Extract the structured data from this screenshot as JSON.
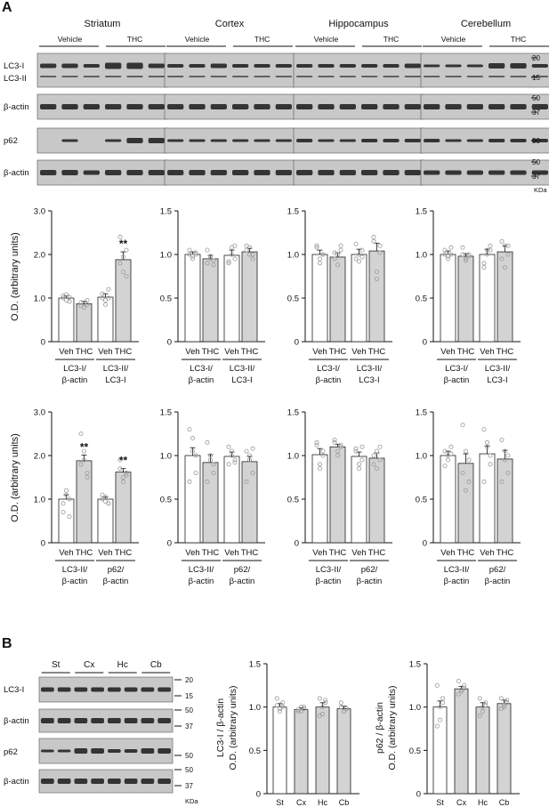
{
  "panel_a": {
    "label": "A",
    "regions": [
      "Striatum",
      "Cortex",
      "Hippocampus",
      "Cerebellum"
    ],
    "group_labels": [
      "Vehicle",
      "THC"
    ],
    "blot_row_labels": [
      "LC3-I",
      "LC3-II",
      "β-actin",
      "p62",
      "β-actin"
    ],
    "marker_sets": [
      [
        "20",
        "15"
      ],
      [
        "50",
        "37"
      ],
      [
        "50"
      ],
      [
        "50",
        "37"
      ]
    ],
    "kda": "KDa",
    "y_axis_label": "O.D. (arbitrary units)",
    "x_tick_labels": [
      "Veh",
      "THC"
    ],
    "significance": "**",
    "row1_groups": [
      [
        "LC3-I/",
        "β-actin"
      ],
      [
        "LC3-II/",
        "LC3-I"
      ]
    ],
    "row2_groups": [
      [
        "LC3-II/",
        "β-actin"
      ],
      [
        "p62/",
        "β-actin"
      ]
    ]
  },
  "panel_b": {
    "label": "B",
    "lane_groups": [
      "St",
      "Cx",
      "Hc",
      "Cb"
    ],
    "blot_row_labels": [
      "LC3-I",
      "β-actin",
      "p62",
      "β-actin"
    ],
    "marker_sets": [
      [
        "20",
        "15"
      ],
      [
        "50",
        "37"
      ],
      [
        "50"
      ],
      [
        "50",
        "37"
      ]
    ],
    "kda": "KDa",
    "x_tick_labels": [
      "St",
      "Cx",
      "Hc",
      "Cb"
    ],
    "y_label_top": [
      "LC3-I / β-actin",
      "p62 / β-actin"
    ],
    "y_label_bottom": "O.D. (arbitrary units)"
  },
  "colors": {
    "veh_bar": "#ffffff",
    "thc_bar": "#d3d3d3",
    "b_bar": "#d3d3d3",
    "dot": "#9a9a9a",
    "blot_bg": "#c8c8c8",
    "band": "#1a1a1a"
  },
  "chart_data": [
    {
      "type": "bar",
      "region": "Striatum",
      "categories": [
        "Veh",
        "THC",
        "Veh",
        "THC"
      ],
      "groups": [
        "LC3-I/β-actin",
        "LC3-II/LC3-I"
      ],
      "values": [
        1.0,
        0.87,
        1.02,
        1.88
      ],
      "errors": [
        0.05,
        0.06,
        0.08,
        0.18
      ],
      "significant": [
        false,
        false,
        false,
        true
      ],
      "ylim": [
        0,
        3.0
      ],
      "yticks": [
        "0",
        "1.0",
        "2.0",
        "3.0"
      ],
      "points": [
        [
          1.0,
          1.08,
          0.92,
          1.05,
          0.95,
          1.02
        ],
        [
          0.9,
          0.78,
          0.95,
          0.82,
          0.88,
          0.85
        ],
        [
          1.0,
          0.85,
          1.2,
          1.1,
          0.95,
          1.0
        ],
        [
          2.4,
          1.95,
          1.5,
          1.8,
          1.6,
          2.1
        ]
      ]
    },
    {
      "type": "bar",
      "region": "Cortex",
      "categories": [
        "Veh",
        "THC",
        "Veh",
        "THC"
      ],
      "groups": [
        "LC3-I/β-actin",
        "LC3-II/LC3-I"
      ],
      "values": [
        1.0,
        0.95,
        0.99,
        1.03
      ],
      "errors": [
        0.03,
        0.04,
        0.06,
        0.04
      ],
      "significant": [
        false,
        false,
        false,
        false
      ],
      "ylim": [
        0,
        1.5
      ],
      "yticks": [
        "0",
        "0.5",
        "1.0",
        "1.5"
      ],
      "points": [
        [
          1.0,
          0.98,
          1.02,
          1.05,
          0.95,
          1.0
        ],
        [
          0.9,
          0.98,
          0.88,
          1.05,
          0.95,
          0.93
        ],
        [
          0.92,
          1.08,
          1.1,
          0.9,
          1.0,
          0.95
        ],
        [
          1.1,
          1.0,
          0.95,
          1.05,
          1.08,
          1.0
        ]
      ]
    },
    {
      "type": "bar",
      "region": "Hippocampus",
      "categories": [
        "Veh",
        "THC",
        "Veh",
        "THC"
      ],
      "groups": [
        "LC3-I/β-actin",
        "LC3-II/LC3-I"
      ],
      "values": [
        1.0,
        0.97,
        1.0,
        1.04
      ],
      "errors": [
        0.05,
        0.05,
        0.06,
        0.09
      ],
      "significant": [
        false,
        false,
        false,
        false
      ],
      "ylim": [
        0,
        1.5
      ],
      "yticks": [
        "0",
        "0.5",
        "1.0",
        "1.5"
      ],
      "points": [
        [
          1.1,
          0.9,
          1.0,
          1.08,
          0.95,
          1.0
        ],
        [
          1.02,
          0.88,
          1.05,
          0.95,
          1.0,
          1.1
        ],
        [
          1.12,
          0.92,
          1.05,
          0.95,
          1.0,
          0.97
        ],
        [
          1.2,
          0.8,
          1.1,
          1.15,
          0.72,
          1.02
        ]
      ]
    },
    {
      "type": "bar",
      "region": "Cerebellum",
      "categories": [
        "Veh",
        "THC",
        "Veh",
        "THC"
      ],
      "groups": [
        "LC3-I/β-actin",
        "LC3-II/LC3-I"
      ],
      "values": [
        1.0,
        0.98,
        1.0,
        1.03
      ],
      "errors": [
        0.04,
        0.03,
        0.06,
        0.07
      ],
      "significant": [
        false,
        false,
        false,
        false
      ],
      "ylim": [
        0,
        1.5
      ],
      "yticks": [
        "0",
        "0.5",
        "1.0",
        "1.5"
      ],
      "points": [
        [
          1.05,
          0.95,
          1.08,
          1.0,
          0.98,
          1.0
        ],
        [
          1.08,
          0.95,
          0.98,
          1.0,
          0.93,
          1.0
        ],
        [
          0.9,
          1.05,
          1.1,
          0.85,
          1.0,
          1.05
        ],
        [
          1.15,
          0.85,
          1.1,
          0.95,
          1.1,
          1.0
        ]
      ]
    },
    {
      "type": "bar",
      "region": "Striatum",
      "categories": [
        "Veh",
        "THC",
        "Veh",
        "THC"
      ],
      "groups": [
        "LC3-II/β-actin",
        "p62/β-actin"
      ],
      "values": [
        1.0,
        1.88,
        1.0,
        1.62
      ],
      "errors": [
        0.1,
        0.13,
        0.05,
        0.08
      ],
      "significant": [
        false,
        true,
        false,
        true
      ],
      "ylim": [
        0,
        3.0
      ],
      "yticks": [
        "0",
        "1.0",
        "2.0",
        "3.0"
      ],
      "points": [
        [
          0.7,
          1.2,
          1.0,
          0.9,
          1.1,
          0.6
        ],
        [
          2.5,
          1.9,
          1.6,
          1.8,
          2.1,
          1.5
        ],
        [
          1.1,
          0.95,
          0.9,
          1.0,
          1.05,
          0.9
        ],
        [
          1.9,
          1.5,
          1.6,
          1.7,
          1.4,
          1.55
        ]
      ]
    },
    {
      "type": "bar",
      "region": "Cortex",
      "categories": [
        "Veh",
        "THC",
        "Veh",
        "THC"
      ],
      "groups": [
        "LC3-II/β-actin",
        "p62/β-actin"
      ],
      "values": [
        1.0,
        0.92,
        0.99,
        0.93
      ],
      "errors": [
        0.09,
        0.09,
        0.05,
        0.06
      ],
      "significant": [
        false,
        false,
        false,
        false
      ],
      "ylim": [
        0,
        1.5
      ],
      "yticks": [
        "0",
        "0.5",
        "1.0",
        "1.5"
      ],
      "points": [
        [
          1.3,
          1.2,
          0.8,
          0.7,
          1.05,
          1.0
        ],
        [
          1.15,
          1.0,
          0.8,
          0.7,
          0.95,
          0.9
        ],
        [
          1.1,
          1.05,
          0.95,
          0.9,
          1.0,
          0.92
        ],
        [
          1.05,
          0.95,
          0.8,
          0.7,
          1.0,
          1.08
        ]
      ]
    },
    {
      "type": "bar",
      "region": "Hippocampus",
      "categories": [
        "Veh",
        "THC",
        "Veh",
        "THC"
      ],
      "groups": [
        "LC3-II/β-actin",
        "p62/β-actin"
      ],
      "values": [
        1.01,
        1.1,
        0.99,
        0.97
      ],
      "errors": [
        0.07,
        0.03,
        0.05,
        0.06
      ],
      "significant": [
        false,
        false,
        false,
        false
      ],
      "ylim": [
        0,
        1.5
      ],
      "yticks": [
        "0",
        "0.5",
        "1.0",
        "1.5"
      ],
      "points": [
        [
          1.12,
          0.85,
          1.0,
          1.15,
          0.9,
          1.05
        ],
        [
          1.15,
          1.05,
          1.1,
          1.18,
          1.0,
          1.12
        ],
        [
          1.08,
          0.9,
          0.95,
          1.05,
          0.85,
          1.1
        ],
        [
          1.0,
          0.85,
          1.1,
          0.9,
          1.05,
          0.95
        ]
      ]
    },
    {
      "type": "bar",
      "region": "Cerebellum",
      "categories": [
        "Veh",
        "THC",
        "Veh",
        "THC"
      ],
      "groups": [
        "LC3-II/β-actin",
        "p62/β-actin"
      ],
      "values": [
        1.0,
        0.91,
        1.02,
        0.96
      ],
      "errors": [
        0.05,
        0.11,
        0.09,
        0.1
      ],
      "significant": [
        false,
        false,
        false,
        false
      ],
      "ylim": [
        0,
        1.5
      ],
      "yticks": [
        "0",
        "0.5",
        "1.0",
        "1.5"
      ],
      "points": [
        [
          1.05,
          0.95,
          1.1,
          0.88,
          1.0,
          1.02
        ],
        [
          1.35,
          1.05,
          0.7,
          0.8,
          0.6,
          0.95
        ],
        [
          1.3,
          1.15,
          0.9,
          0.7,
          1.1,
          1.0
        ],
        [
          1.18,
          1.05,
          0.8,
          0.7,
          0.95,
          1.0
        ]
      ]
    },
    {
      "type": "bar",
      "panel": "B",
      "categories": [
        "St",
        "Cx",
        "Hc",
        "Cb"
      ],
      "values": [
        1.0,
        0.97,
        1.0,
        0.98
      ],
      "errors": [
        0.04,
        0.02,
        0.05,
        0.03
      ],
      "ylim": [
        0,
        1.5
      ],
      "yticks": [
        "0",
        "0.5",
        "1.0",
        "1.5"
      ],
      "points": [
        [
          1.1,
          0.95,
          1.0,
          1.02,
          0.98,
          1.05
        ],
        [
          0.95,
          1.0,
          0.98,
          0.97,
          0.95,
          1.0
        ],
        [
          1.1,
          0.92,
          1.05,
          0.9,
          1.0,
          1.08
        ],
        [
          1.05,
          0.95,
          0.98,
          1.0,
          0.95,
          0.98
        ]
      ]
    },
    {
      "type": "bar",
      "panel": "B",
      "categories": [
        "St",
        "Cx",
        "Hc",
        "Cb"
      ],
      "values": [
        1.0,
        1.21,
        1.0,
        1.04
      ],
      "errors": [
        0.07,
        0.03,
        0.05,
        0.04
      ],
      "ylim": [
        0,
        1.5
      ],
      "yticks": [
        "0",
        "0.5",
        "1.0",
        "1.5"
      ],
      "points": [
        [
          1.25,
          0.85,
          1.05,
          0.78,
          1.0,
          1.1
        ],
        [
          1.3,
          1.2,
          1.25,
          1.15,
          1.18,
          1.22
        ],
        [
          1.1,
          0.95,
          1.05,
          0.9,
          1.0,
          1.02
        ],
        [
          1.1,
          1.0,
          1.05,
          0.98,
          1.02,
          1.08
        ]
      ]
    }
  ]
}
